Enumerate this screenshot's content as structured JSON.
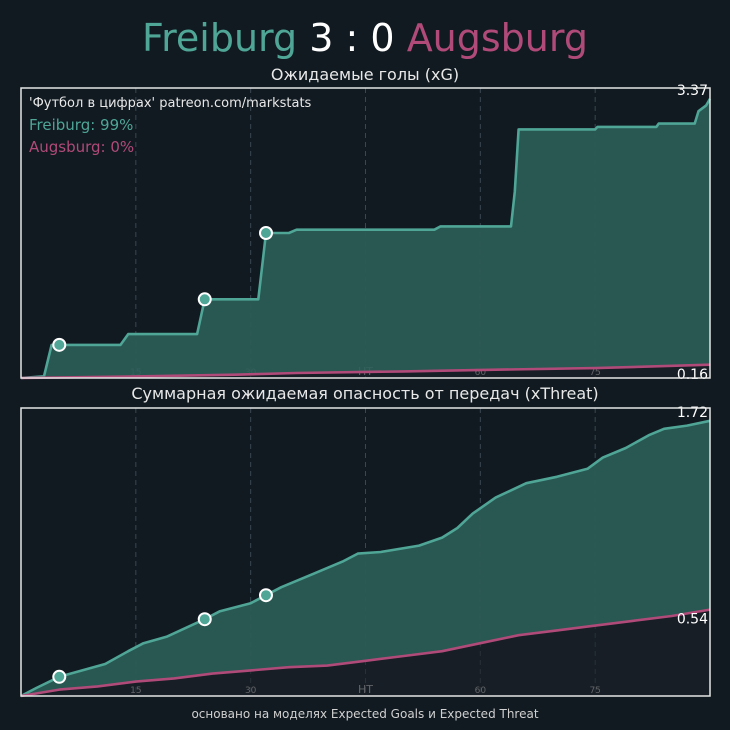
{
  "header": {
    "home_team": "Freiburg",
    "away_team": "Augsburg",
    "home_score": "3",
    "away_score": "0",
    "separator": ":"
  },
  "colors": {
    "home": "#4fa596",
    "away": "#b04a78",
    "background": "#111a21",
    "fill": "#2b5b55"
  },
  "footer": "основано на моделях Expected Goals и Expected Threat",
  "chart_data": [
    {
      "type": "area",
      "title": "Ожидаемые голы (xG)",
      "credit": "'Футбол в цифрах' patreon.com/markstats",
      "legend": [
        "Freiburg: 99%",
        "Augsburg: 0%"
      ],
      "legend_position": "top-left",
      "end_labels": [
        "3.37",
        "0.16"
      ],
      "x_ticks": [
        15,
        30,
        "HT",
        60,
        75
      ],
      "xlim": [
        0,
        90
      ],
      "ylim": [
        0,
        3.5
      ],
      "grid": "vertical dashed",
      "series": [
        {
          "name": "Freiburg",
          "x": [
            0,
            3,
            4,
            5,
            13,
            14,
            23,
            24,
            31,
            32,
            35,
            36,
            54,
            54.8,
            64,
            64.5,
            65,
            66,
            75,
            75.3,
            83,
            83.3,
            88,
            88.5,
            89.5,
            90
          ],
          "y": [
            0,
            0.02,
            0.4,
            0.4,
            0.4,
            0.53,
            0.53,
            0.95,
            0.95,
            1.75,
            1.75,
            1.79,
            1.79,
            1.83,
            1.83,
            2.25,
            3.0,
            3.0,
            3.0,
            3.03,
            3.03,
            3.07,
            3.07,
            3.22,
            3.29,
            3.37
          ]
        },
        {
          "name": "Augsburg",
          "x": [
            0,
            8,
            16,
            28,
            36,
            50,
            62,
            75,
            90
          ],
          "y": [
            0,
            0.01,
            0.02,
            0.04,
            0.06,
            0.08,
            0.1,
            0.12,
            0.16
          ]
        }
      ],
      "goals": [
        {
          "x": 5,
          "y": 0.4
        },
        {
          "x": 24,
          "y": 0.95
        },
        {
          "x": 32,
          "y": 1.75
        }
      ]
    },
    {
      "type": "area",
      "title": "Суммарная ожидаемая опасность от передач (xThreat)",
      "end_labels": [
        "1.72",
        "0.54"
      ],
      "x_ticks": [
        15,
        30,
        "HT",
        60,
        75
      ],
      "xlim": [
        0,
        90
      ],
      "ylim": [
        0,
        1.8
      ],
      "grid": "vertical dashed",
      "series": [
        {
          "name": "Freiburg",
          "x": [
            0,
            2,
            5,
            8,
            11,
            14,
            16,
            19,
            24,
            26,
            30,
            32,
            34,
            38,
            42,
            44,
            47,
            52,
            55,
            57,
            59,
            62,
            66,
            70,
            74,
            76,
            79,
            82,
            84,
            87,
            90
          ],
          "y": [
            0.0,
            0.05,
            0.12,
            0.16,
            0.2,
            0.28,
            0.33,
            0.37,
            0.48,
            0.53,
            0.58,
            0.63,
            0.68,
            0.76,
            0.84,
            0.89,
            0.9,
            0.94,
            0.99,
            1.05,
            1.14,
            1.24,
            1.33,
            1.37,
            1.42,
            1.49,
            1.55,
            1.63,
            1.67,
            1.69,
            1.72
          ]
        },
        {
          "name": "Augsburg",
          "x": [
            0,
            5,
            10,
            15,
            20,
            25,
            30,
            35,
            40,
            45,
            50,
            55,
            60,
            65,
            70,
            75,
            80,
            85,
            90
          ],
          "y": [
            0.0,
            0.04,
            0.06,
            0.09,
            0.11,
            0.14,
            0.16,
            0.18,
            0.19,
            0.22,
            0.25,
            0.28,
            0.33,
            0.38,
            0.41,
            0.44,
            0.47,
            0.5,
            0.54
          ]
        }
      ],
      "threat_markers": [
        {
          "x": 5,
          "y": 0.12
        },
        {
          "x": 24,
          "y": 0.48
        },
        {
          "x": 32,
          "y": 0.63
        }
      ]
    }
  ]
}
